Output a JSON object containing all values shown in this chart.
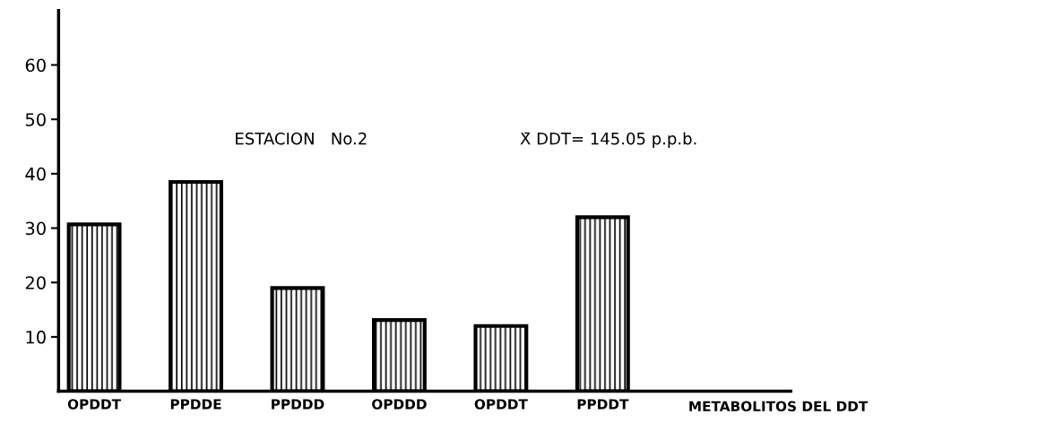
{
  "chart_data": {
    "type": "bar",
    "categories": [
      "OPDDT",
      "PPDDE",
      "PPDDD",
      "OPDDD",
      "OPDDT",
      "PPDDT"
    ],
    "values": [
      30.7,
      38.5,
      19.0,
      13.1,
      12.0,
      32.0
    ],
    "color": "#000000",
    "xlabel": "METABOLITOS DEL DDT",
    "annotations": [
      "ESTACION   No.2",
      "X̄ DDT= 145.05 p.p.b."
    ],
    "ylim": [
      0,
      70
    ],
    "yticks": [
      10,
      20,
      30,
      40,
      50,
      60
    ],
    "grid": false
  }
}
